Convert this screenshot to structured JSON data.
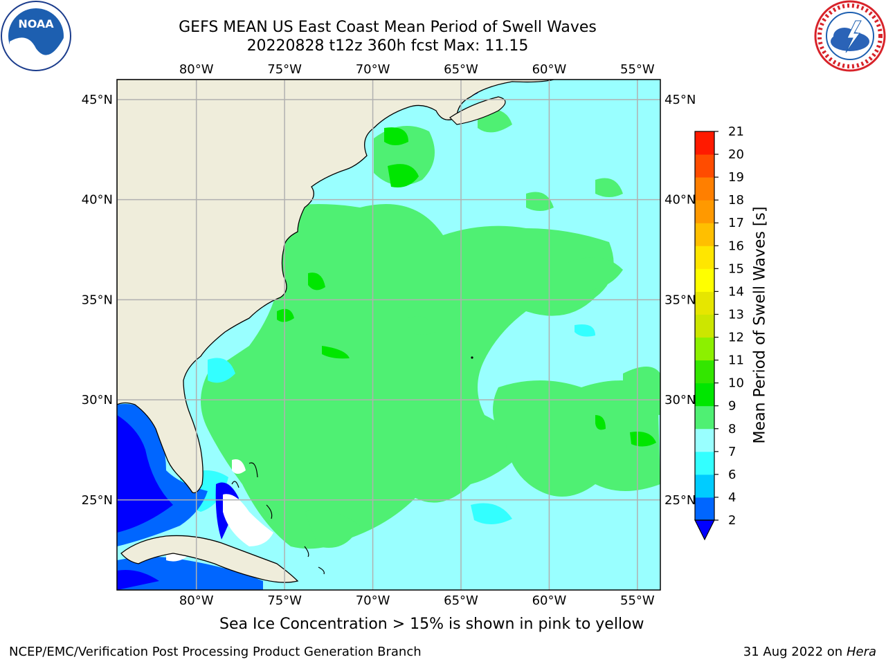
{
  "header": {
    "title_line1": "GEFS MEAN US East Coast Mean Period of Swell Waves",
    "title_line2": "20220828 t12z 360h fcst   Max: 11.15"
  },
  "logos": {
    "left": "noaa-logo",
    "left_text": "NOAA",
    "right": "nws-logo"
  },
  "map": {
    "lon_ticks": [
      "80°W",
      "75°W",
      "70°W",
      "65°W",
      "60°W",
      "55°W"
    ],
    "lat_ticks": [
      "45°N",
      "40°N",
      "35°N",
      "30°N",
      "25°N"
    ],
    "lon_range": [
      -84.5,
      -53.7
    ],
    "lat_range": [
      20.5,
      46.0
    ],
    "gridlines": true,
    "land_color": "#efeddb",
    "ocean_base_color": "#99ffff",
    "field_max": "11.15"
  },
  "colorbar": {
    "label": "Mean Period of Swell Waves [s]",
    "tick_labels": [
      "2",
      "4",
      "6",
      "7",
      "8",
      "9",
      "10",
      "11",
      "12",
      "13",
      "14",
      "15",
      "16",
      "17",
      "18",
      "19",
      "20",
      "21"
    ],
    "colors": [
      "#0066ff",
      "#00ccff",
      "#33ffff",
      "#99ffff",
      "#4ff073",
      "#00e600",
      "#33e600",
      "#8cf000",
      "#cce600",
      "#e6e600",
      "#ffff00",
      "#ffe600",
      "#ffbf00",
      "#ff9900",
      "#ff7f00",
      "#ff4c00",
      "#ff1a00"
    ],
    "under_color": "#0000ff"
  },
  "notes": {
    "sea_ice": "Sea Ice Concentration > 15% is shown in pink to yellow"
  },
  "footer": {
    "left": "NCEP/EMC/Verification Post Processing Product Generation Branch",
    "date": "31 Aug 2022 on",
    "host": "Hera"
  }
}
